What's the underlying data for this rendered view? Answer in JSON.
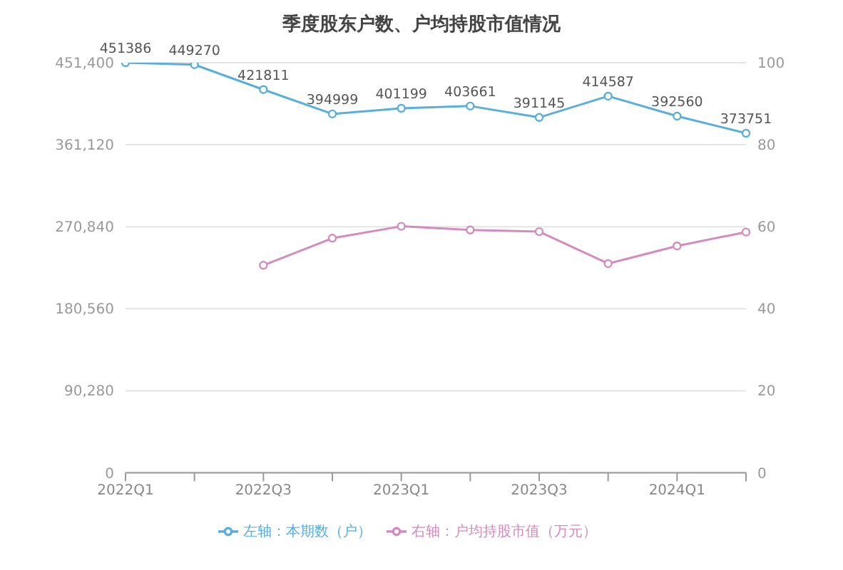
{
  "chart_data": {
    "type": "line",
    "title": "季度股东户数、户均持股市值情况",
    "categories": [
      "2022Q1",
      null,
      "2022Q3",
      null,
      "2023Q1",
      null,
      "2023Q3",
      null,
      "2024Q1",
      null
    ],
    "series": [
      {
        "name": "左轴：本期数（户）",
        "color": "#5aaedc",
        "values": [
          451386,
          449270,
          421811,
          394999,
          401199,
          403661,
          391145,
          414587,
          392560,
          373751
        ],
        "value_labels": [
          "451386",
          "449270",
          "421811",
          "394999",
          "401199",
          "403661",
          "391145",
          "414587",
          "392560",
          "373751"
        ]
      },
      {
        "name": "右轴：户均持股市值（万元）",
        "color": "#d48bbd",
        "axis": "y2",
        "values": [
          null,
          null,
          50.6,
          57.2,
          60.1,
          59.2,
          58.8,
          51,
          55.3,
          58.7
        ]
      }
    ],
    "ylim": [
      0,
      451400
    ],
    "yticks": [
      0,
      {
        "value": 90280,
        "label": "90,280"
      },
      {
        "value": 180560,
        "label": "180,560"
      },
      {
        "value": 270840,
        "label": "270,840"
      },
      {
        "value": 361120,
        "label": "361,120"
      },
      {
        "value": 451400,
        "label": "451,400"
      }
    ],
    "y2lim": [
      0,
      100
    ],
    "y2ticks": [
      0,
      20,
      40,
      60,
      80,
      100
    ],
    "grid": "y",
    "legend": "bottom",
    "marker": "circle",
    "line_style": "solid"
  }
}
